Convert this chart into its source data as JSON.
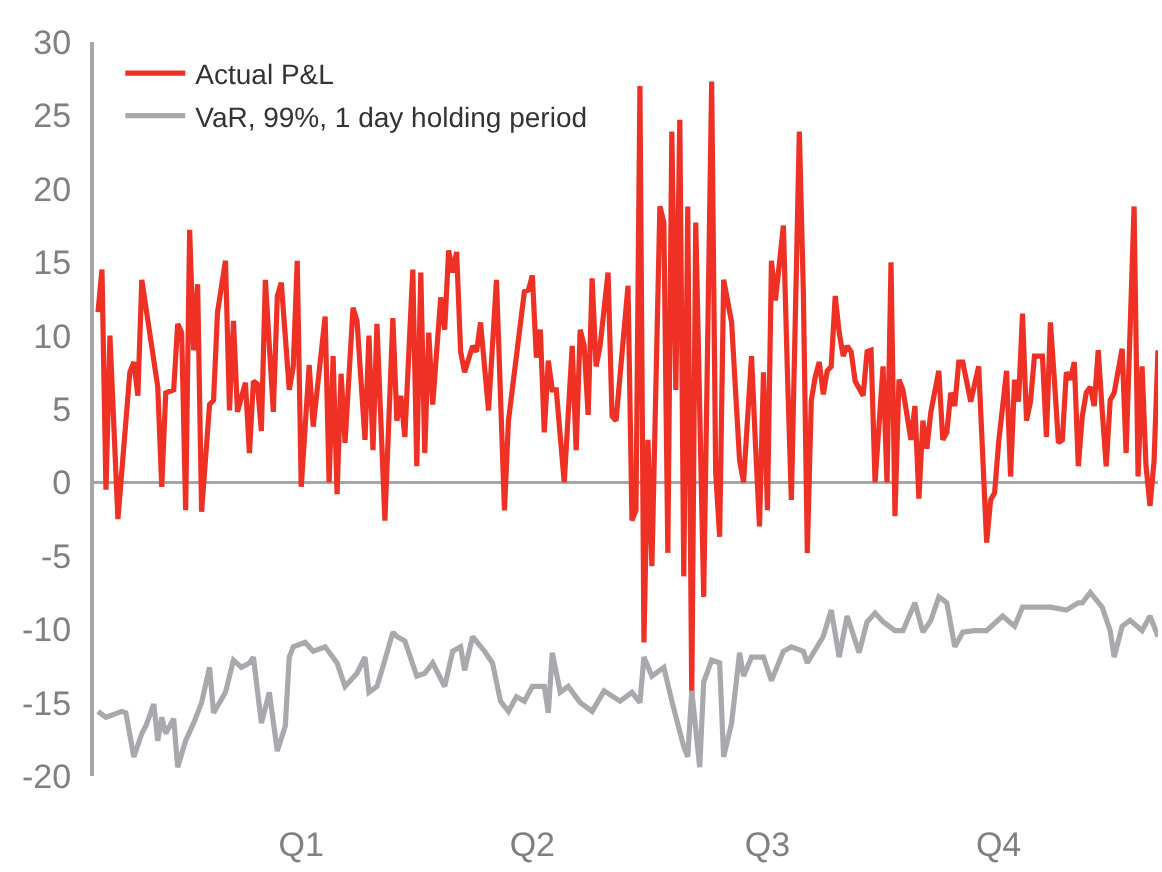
{
  "chart_data": {
    "type": "line",
    "ylim": [
      -20,
      30
    ],
    "categories": [
      null,
      null,
      null,
      null,
      null,
      null,
      null,
      null,
      null,
      null,
      null,
      null,
      null,
      null,
      null,
      null,
      null,
      null,
      null,
      null,
      null,
      null,
      null,
      null,
      null,
      null,
      null,
      null,
      null,
      null,
      null,
      null,
      null,
      null,
      null,
      null,
      null,
      null,
      null,
      null,
      null,
      null,
      null,
      null,
      null,
      null,
      null,
      null,
      null,
      null,
      null,
      null,
      "Q1",
      null,
      null,
      null,
      null,
      null,
      null,
      null,
      null,
      null,
      null,
      null,
      null,
      null,
      null,
      null,
      null,
      null,
      null,
      null,
      null,
      null,
      null,
      null,
      null,
      null,
      null,
      null,
      null,
      null,
      null,
      null,
      null,
      null,
      null,
      null,
      null,
      null,
      null,
      null,
      null,
      null,
      null,
      null,
      null,
      null,
      null,
      null,
      null,
      null,
      null,
      null,
      null,
      null,
      null,
      null,
      null,
      null,
      "Q2",
      null,
      null,
      null,
      null,
      null,
      null,
      null,
      null,
      null,
      null,
      null,
      null,
      null,
      null,
      null,
      null,
      null,
      null,
      null,
      null,
      null,
      null,
      null,
      null,
      null,
      null,
      null,
      null,
      null,
      null,
      null,
      null,
      null,
      null,
      null,
      null,
      null,
      null,
      null,
      null,
      null,
      null,
      null,
      null,
      null,
      null,
      null,
      null,
      null,
      null,
      null,
      null,
      null,
      null,
      null,
      null,
      null,
      null,
      "Q3",
      null,
      null,
      null,
      null,
      null,
      null,
      null,
      null,
      null,
      null,
      null,
      null,
      null,
      null,
      null,
      null,
      null,
      null,
      null,
      null,
      null,
      null,
      null,
      null,
      null,
      null,
      null,
      null,
      null,
      null,
      null,
      null,
      null,
      null,
      null,
      null,
      null,
      null,
      null,
      null,
      null,
      null,
      null,
      null,
      null,
      null,
      null,
      null,
      null,
      null,
      null,
      null,
      null,
      null,
      null,
      null,
      null,
      "Q4",
      null,
      null,
      null,
      null,
      null,
      null,
      null,
      null,
      null,
      null,
      null,
      null,
      null,
      null,
      null,
      null,
      null,
      null,
      null,
      null,
      null,
      null,
      null,
      null,
      null,
      null,
      null,
      null,
      null,
      null,
      null,
      null,
      null,
      null,
      null,
      null,
      null,
      null,
      null,
      null
    ],
    "yticks": [
      -20,
      -15,
      -10,
      -5,
      0,
      5,
      10,
      15,
      20,
      25,
      30
    ],
    "grid": false,
    "legend": "top left",
    "marker": "none",
    "line_style": "solid",
    "ref_lines": [
      {
        "axis": "y",
        "value": 0,
        "color": "#a6a6a6"
      }
    ],
    "series": [
      {
        "name": "Actual P&L",
        "color": "#ee3124",
        "values": [
          null,
          11.6,
          14.5,
          -0.5,
          10,
          null,
          -2.5,
          null,
          null,
          7.5,
          8.2,
          5.9,
          13.8,
          null,
          null,
          null,
          6.5,
          -0.3,
          6.1,
          null,
          6.3,
          10.8,
          10.2,
          -1.9,
          17.2,
          9.0,
          13.5,
          -2.0,
          null,
          5.3,
          5.6,
          11.6,
          null,
          15.1,
          4.9,
          11.0,
          4.8,
          null,
          6.8,
          2.0,
          6.9,
          6.7,
          3.5,
          13.8,
          null,
          4.8,
          12.7,
          13.6,
          null,
          6.3,
          7.9,
          15.1,
          -0.3,
          null,
          8.0,
          3.8,
          null,
          null,
          11.3,
          0,
          8.6,
          -0.8,
          7.4,
          2.7,
          null,
          11.9,
          11.0,
          null,
          2.9,
          10.0,
          2.2,
          10.8,
          null,
          -2.6,
          null,
          11.2,
          4.2,
          5.9,
          3.1,
          null,
          14.5,
          1.1,
          14.3,
          2.0,
          10.2,
          5.3,
          null,
          12.6,
          10.4,
          15.8,
          14.3,
          15.7,
          8.9,
          7.5,
          null,
          9.3,
          8.9,
          10.9,
          null,
          4.9,
          null,
          13.8,
          null,
          -1.9,
          4.2,
          null,
          null,
          null,
          13.0,
          13.1,
          14.1,
          8.5,
          10.4,
          3.4,
          8.3,
          6.3,
          6.3,
          null,
          0,
          null,
          9.3,
          2.2,
          10.4,
          9.3,
          4.6,
          13.9,
          7.9,
          9.3,
          null,
          14.3,
          4.5,
          4.2,
          null,
          null,
          13.4,
          -2.6,
          -1.9,
          27.0,
          -10.9,
          2.9,
          -5.7,
          null,
          18.8,
          17.7,
          -4.8,
          23.9,
          6.3,
          24.7,
          -6.4,
          18.8,
          -14.6,
          17.7,
          null,
          -7.8,
          null,
          27.3,
          0.7,
          -3.7,
          13.8,
          null,
          10.9,
          null,
          1.5,
          0,
          null,
          8.6,
          2.5,
          -3.0,
          7.5,
          -1.9,
          15.1,
          12.4,
          null,
          17.5,
          7.5,
          -1.2,
          null,
          23.9,
          13.0,
          -4.8,
          5.6,
          7.2,
          8.2,
          6.0,
          7.6,
          7.9,
          12.7,
          10.2,
          8.6,
          9.3,
          8.9,
          6.9,
          null,
          5.9,
          8.9,
          9.0,
          0,
          null,
          7.9,
          0,
          15.0,
          -2.3,
          7.0,
          6.3,
          null,
          2.9,
          5.2,
          -1.1,
          4.2,
          2.3,
          4.8,
          null,
          7.6,
          2.9,
          3.4,
          6.1,
          5.2,
          8.2,
          8.2,
          null,
          5.5,
          null,
          7.9,
          null,
          -4.1,
          -1.2,
          -0.7,
          2.7,
          null,
          7.6,
          0.4,
          7.0,
          5.5,
          11.5,
          4.2,
          5.5,
          8.6,
          null,
          8.6,
          3.1,
          10.9,
          7.0,
          2.7,
          2.9,
          7.5,
          7.0,
          8.2,
          1.1,
          4.5,
          6.1,
          6.5,
          5.2,
          9.0,
          4.9,
          1.1,
          5.6,
          6.1,
          null,
          9.1,
          2.0,
          null,
          18.8,
          0.4,
          7.9,
          1.1,
          -1.6,
          1.4,
          9.0
        ]
      },
      {
        "name": "VaR, 99%, 1 day holding period",
        "color": "#a7a9ac",
        "values": [
          null,
          -15.6,
          null,
          -16.0,
          null,
          null,
          null,
          -15.6,
          -15.7,
          null,
          -18.7,
          null,
          -17.1,
          -16.6,
          null,
          -15.1,
          -17.6,
          -16.0,
          -17.1,
          null,
          -16.1,
          -19.4,
          null,
          -17.6,
          null,
          -16.4,
          null,
          -15.0,
          null,
          -12.6,
          -15.7,
          null,
          null,
          -14.3,
          null,
          -12.1,
          null,
          -12.6,
          null,
          -12.3,
          -11.9,
          null,
          -16.4,
          null,
          -14.3,
          null,
          -18.3,
          null,
          -16.6,
          -11.9,
          -11.2,
          null,
          null,
          -10.9,
          null,
          -11.5,
          null,
          null,
          -11.2,
          null,
          null,
          -12.3,
          null,
          -13.9,
          null,
          null,
          -13.0,
          null,
          -11.9,
          -14.3,
          null,
          -13.9,
          null,
          -12.1,
          null,
          -10.2,
          -10.5,
          null,
          -10.8,
          null,
          null,
          -13.2,
          null,
          -13.0,
          null,
          -12.3,
          null,
          null,
          -13.9,
          null,
          -11.5,
          null,
          -11.2,
          -12.8,
          null,
          -10.5,
          null,
          null,
          -11.5,
          null,
          -12.3,
          null,
          -14.9,
          null,
          -15.6,
          null,
          -14.6,
          null,
          -14.9,
          null,
          -13.9,
          null,
          null,
          -13.9,
          -15.7,
          -11.6,
          null,
          -14.3,
          null,
          -13.9,
          null,
          null,
          -15.0,
          null,
          null,
          -15.6,
          null,
          null,
          -14.2,
          null,
          null,
          null,
          -14.9,
          null,
          null,
          -14.3,
          null,
          -15.0,
          -11.9,
          null,
          -13.2,
          null,
          null,
          -12.6,
          null,
          -14.9,
          null,
          null,
          -18.0,
          -18.7,
          -14.2,
          null,
          -19.4,
          -13.6,
          null,
          -12.1,
          null,
          -12.3,
          -18.7,
          null,
          -16.4,
          null,
          -11.6,
          -13.2,
          null,
          -11.9,
          null,
          null,
          -11.9,
          null,
          -13.5,
          null,
          null,
          -11.5,
          null,
          -11.2,
          null,
          null,
          -11.5,
          -12.3,
          null,
          null,
          null,
          -10.5,
          null,
          -8.7,
          null,
          -11.9,
          null,
          -9.1,
          null,
          null,
          -11.6,
          null,
          -9.5,
          null,
          -8.9,
          null,
          -9.5,
          null,
          null,
          -10.1,
          null,
          -10.1,
          null,
          null,
          -8.2,
          null,
          -10.2,
          null,
          -9.4,
          null,
          -7.8,
          null,
          -8.2,
          null,
          -11.2,
          null,
          -10.2,
          null,
          null,
          -10.1,
          null,
          null,
          -10.1,
          null,
          null,
          null,
          -9.1,
          null,
          null,
          -9.8,
          null,
          -8.5,
          null,
          null,
          null,
          -8.5,
          null,
          null,
          -8.5,
          null,
          null,
          null,
          -8.7,
          null,
          null,
          -8.2,
          -8.2,
          null,
          -7.5,
          null,
          null,
          -8.5,
          null,
          -10.1,
          -11.9,
          null,
          -9.8,
          null,
          -9.4,
          null,
          null,
          -10.1,
          null,
          -9.1,
          null,
          -10.5
        ]
      }
    ]
  }
}
